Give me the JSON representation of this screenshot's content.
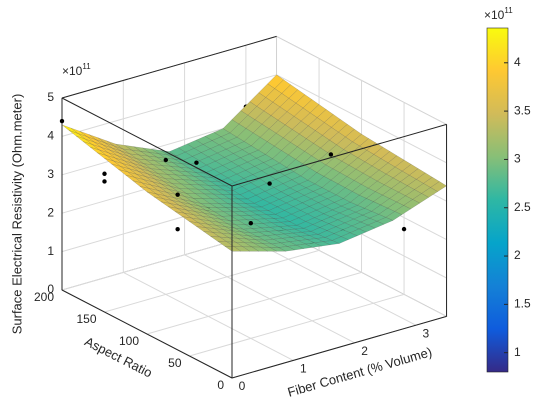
{
  "chart_data": {
    "type": "surface",
    "xlabel": "Fiber Content (% Volume)",
    "ylabel": "Aspect Ratio",
    "zlabel": "Surface Electrical Resistivity (Ohm.meter)",
    "zmultiplier": {
      "base": "×10",
      "exponent": "11"
    },
    "cmultiplier": {
      "base": "×10",
      "exponent": "11"
    },
    "xlim": [
      0,
      3.5
    ],
    "xticks": [
      0,
      1,
      2,
      3
    ],
    "ylim": [
      0,
      200
    ],
    "yticks": [
      0,
      50,
      100,
      150,
      200
    ],
    "zlim": [
      0,
      5
    ],
    "zticks": [
      0,
      1,
      2,
      3,
      4,
      5
    ],
    "grid": true,
    "surface": {
      "x": [
        0,
        0.875,
        1.75,
        2.625,
        3.5
      ],
      "y": [
        0,
        50,
        100,
        150,
        200
      ],
      "z": [
        [
          3.3,
          2.9,
          2.7,
          2.9,
          3.4
        ],
        [
          3.5,
          2.9,
          2.6,
          2.8,
          3.5
        ],
        [
          3.7,
          3.0,
          2.6,
          2.8,
          3.6
        ],
        [
          4.0,
          3.2,
          2.7,
          2.9,
          3.8
        ],
        [
          4.3,
          3.4,
          2.8,
          3.0,
          4.0
        ]
      ]
    },
    "points": {
      "color": "#000000",
      "x": [
        0,
        0,
        0,
        0.5,
        0.5,
        1,
        1,
        1,
        1.5,
        1.5,
        2,
        2,
        2.5,
        3,
        3,
        3.5
      ],
      "y": [
        200,
        150,
        150,
        100,
        100,
        150,
        100,
        50,
        150,
        50,
        50,
        100,
        50,
        100,
        200,
        50
      ],
      "z": [
        4.4,
        3.6,
        3.4,
        3.4,
        2.5,
        3.5,
        2.8,
        3.0,
        3.2,
        2.6,
        2.0,
        3.0,
        2.1,
        3.3,
        3.4,
        1.7
      ]
    },
    "colormap": [
      "#352a87",
      "#0f5cdd",
      "#1481d6",
      "#06a4ca",
      "#2eb7a4",
      "#87bf77",
      "#d1bb59",
      "#fec832",
      "#f9fb0e"
    ],
    "clim": [
      0.8,
      4.36
    ],
    "cticks": [
      1,
      1.5,
      2,
      2.5,
      3,
      3.5,
      4
    ]
  }
}
